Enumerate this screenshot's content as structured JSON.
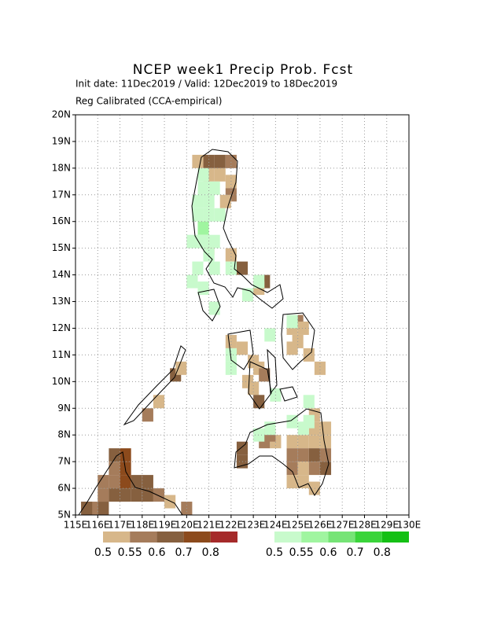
{
  "header": {
    "title": "NCEP week1 Precip Prob. Fcst",
    "subtitle": "Init date: 11Dec2019 / Valid: 12Dec2019 to 18Dec2019",
    "note": "Reg Calibrated (CCA-empirical)"
  },
  "map": {
    "xlim": [
      115,
      130
    ],
    "ylim": [
      5,
      20
    ],
    "xticks": [
      {
        "value": 115,
        "label": "115E"
      },
      {
        "value": 116,
        "label": "116E"
      },
      {
        "value": 117,
        "label": "117E"
      },
      {
        "value": 118,
        "label": "118E"
      },
      {
        "value": 119,
        "label": "119E"
      },
      {
        "value": 120,
        "label": "120E"
      },
      {
        "value": 121,
        "label": "121E"
      },
      {
        "value": 122,
        "label": "122E"
      },
      {
        "value": 123,
        "label": "123E"
      },
      {
        "value": 124,
        "label": "124E"
      },
      {
        "value": 125,
        "label": "125E"
      },
      {
        "value": 126,
        "label": "126E"
      },
      {
        "value": 127,
        "label": "127E"
      },
      {
        "value": 128,
        "label": "128E"
      },
      {
        "value": 129,
        "label": "129E"
      },
      {
        "value": 130,
        "label": "130E"
      }
    ],
    "yticks": [
      {
        "value": 5,
        "label": "5N"
      },
      {
        "value": 6,
        "label": "6N"
      },
      {
        "value": 7,
        "label": "7N"
      },
      {
        "value": 8,
        "label": "8N"
      },
      {
        "value": 9,
        "label": "9N"
      },
      {
        "value": 10,
        "label": "10N"
      },
      {
        "value": 11,
        "label": "11N"
      },
      {
        "value": 12,
        "label": "12N"
      },
      {
        "value": 13,
        "label": "13N"
      },
      {
        "value": 14,
        "label": "14N"
      },
      {
        "value": 15,
        "label": "15N"
      },
      {
        "value": 16,
        "label": "16N"
      },
      {
        "value": 17,
        "label": "17N"
      },
      {
        "value": 18,
        "label": "18N"
      },
      {
        "value": 19,
        "label": "19N"
      },
      {
        "value": 20,
        "label": "20N"
      }
    ],
    "grid": true,
    "dry_cells": [
      [
        120.75,
        18.0,
        0.6
      ],
      [
        121.25,
        18.0,
        0.6
      ],
      [
        121.75,
        18.0,
        0.55
      ],
      [
        120.25,
        18.0,
        0.5
      ],
      [
        120.75,
        17.5,
        0.5
      ],
      [
        121.25,
        17.5,
        0.5
      ],
      [
        121.75,
        17.25,
        0.5
      ],
      [
        121.75,
        16.75,
        0.55
      ],
      [
        121.5,
        16.5,
        0.5
      ],
      [
        120.75,
        14.75,
        0.5
      ],
      [
        121.75,
        14.5,
        0.5
      ],
      [
        122.25,
        14.0,
        0.6
      ],
      [
        123.25,
        13.5,
        0.6
      ],
      [
        123.0,
        13.25,
        0.5
      ],
      [
        124.75,
        12.0,
        0.55
      ],
      [
        124.5,
        11.75,
        0.5
      ],
      [
        125.0,
        11.75,
        0.5
      ],
      [
        124.75,
        11.25,
        0.5
      ],
      [
        124.5,
        11.0,
        0.5
      ],
      [
        125.25,
        10.75,
        0.5
      ],
      [
        121.75,
        11.25,
        0.5
      ],
      [
        122.25,
        11.0,
        0.5
      ],
      [
        122.75,
        10.5,
        0.5
      ],
      [
        123.0,
        10.25,
        0.5
      ],
      [
        123.25,
        10.0,
        0.55
      ],
      [
        122.5,
        9.75,
        0.5
      ],
      [
        122.75,
        9.5,
        0.5
      ],
      [
        123.0,
        9.0,
        0.6
      ],
      [
        125.75,
        10.25,
        0.5
      ],
      [
        119.25,
        10.0,
        0.6
      ],
      [
        119.5,
        10.25,
        0.5
      ],
      [
        118.5,
        9.0,
        0.5
      ],
      [
        118.0,
        8.5,
        0.55
      ],
      [
        125.5,
        8.5,
        0.5
      ],
      [
        125.5,
        8.0,
        0.5
      ],
      [
        126.0,
        8.0,
        0.5
      ],
      [
        125.0,
        7.5,
        0.5
      ],
      [
        124.5,
        7.5,
        0.5
      ],
      [
        125.5,
        7.5,
        0.5
      ],
      [
        126.0,
        7.5,
        0.5
      ],
      [
        124.5,
        7.0,
        0.55
      ],
      [
        125.0,
        7.0,
        0.55
      ],
      [
        125.5,
        7.0,
        0.6
      ],
      [
        126.0,
        7.0,
        0.55
      ],
      [
        124.5,
        6.5,
        0.55
      ],
      [
        125.0,
        6.5,
        0.5
      ],
      [
        125.5,
        6.5,
        0.55
      ],
      [
        126.0,
        6.5,
        0.6
      ],
      [
        124.5,
        6.0,
        0.5
      ],
      [
        125.0,
        6.0,
        0.5
      ],
      [
        125.5,
        5.75,
        0.5
      ],
      [
        122.25,
        7.25,
        0.6
      ],
      [
        122.25,
        6.75,
        0.6
      ],
      [
        123.25,
        7.5,
        0.55
      ],
      [
        123.75,
        7.5,
        0.5
      ],
      [
        123.5,
        7.75,
        0.55
      ],
      [
        116.5,
        7.0,
        0.6
      ],
      [
        117.0,
        7.0,
        0.7
      ],
      [
        117.0,
        6.5,
        0.7
      ],
      [
        116.5,
        6.5,
        0.55
      ],
      [
        117.0,
        6.0,
        0.7
      ],
      [
        116.0,
        6.0,
        0.55
      ],
      [
        116.5,
        6.0,
        0.55
      ],
      [
        117.5,
        6.0,
        0.6
      ],
      [
        118.0,
        6.0,
        0.6
      ],
      [
        118.5,
        5.5,
        0.55
      ],
      [
        117.5,
        5.5,
        0.6
      ],
      [
        116.0,
        5.5,
        0.55
      ],
      [
        116.5,
        5.5,
        0.6
      ],
      [
        117.0,
        5.5,
        0.6
      ],
      [
        118.0,
        5.5,
        0.6
      ],
      [
        119.0,
        5.25,
        0.5
      ],
      [
        119.75,
        5.0,
        0.55
      ],
      [
        115.5,
        5.0,
        0.55
      ],
      [
        116.0,
        5.0,
        0.6
      ],
      [
        115.25,
        5.0,
        0.6
      ]
    ],
    "wet_cells": [
      [
        120.5,
        17.5,
        0.5
      ],
      [
        120.5,
        17.0,
        0.5
      ],
      [
        120.75,
        16.5,
        0.5
      ],
      [
        121.0,
        17.0,
        0.5
      ],
      [
        120.25,
        16.5,
        0.5
      ],
      [
        120.25,
        16.0,
        0.5
      ],
      [
        120.75,
        16.0,
        0.5
      ],
      [
        120.5,
        15.5,
        0.55
      ],
      [
        120.0,
        15.0,
        0.5
      ],
      [
        120.5,
        15.0,
        0.5
      ],
      [
        121.0,
        15.0,
        0.5
      ],
      [
        121.25,
        16.0,
        0.5
      ],
      [
        120.75,
        14.5,
        0.5
      ],
      [
        120.25,
        14.0,
        0.5
      ],
      [
        121.0,
        14.0,
        0.5
      ],
      [
        121.75,
        14.0,
        0.5
      ],
      [
        120.0,
        13.5,
        0.5
      ],
      [
        120.5,
        13.25,
        0.5
      ],
      [
        121.0,
        12.5,
        0.5
      ],
      [
        122.5,
        13.0,
        0.5
      ],
      [
        123.0,
        13.5,
        0.5
      ],
      [
        124.5,
        12.0,
        0.5
      ],
      [
        121.75,
        10.75,
        0.5
      ],
      [
        121.75,
        10.25,
        0.5
      ],
      [
        123.75,
        9.25,
        0.5
      ],
      [
        125.25,
        9.0,
        0.5
      ],
      [
        124.5,
        8.25,
        0.5
      ],
      [
        125.25,
        8.25,
        0.5
      ],
      [
        123.0,
        7.75,
        0.5
      ],
      [
        123.5,
        8.0,
        0.5
      ],
      [
        125.0,
        8.0,
        0.5
      ],
      [
        123.5,
        11.5,
        0.5
      ]
    ]
  },
  "legends": {
    "dry": {
      "levels": [
        0.5,
        0.55,
        0.6,
        0.7,
        0.8
      ],
      "colors": [
        "#d7b78a",
        "#a57c5b",
        "#86603f",
        "#8c4a1c",
        "#a52a2a"
      ]
    },
    "wet": {
      "levels": [
        0.5,
        0.55,
        0.6,
        0.7,
        0.8
      ],
      "colors": [
        "#c8facc",
        "#a0f5a0",
        "#76e476",
        "#3ad43a",
        "#14c014"
      ]
    }
  }
}
